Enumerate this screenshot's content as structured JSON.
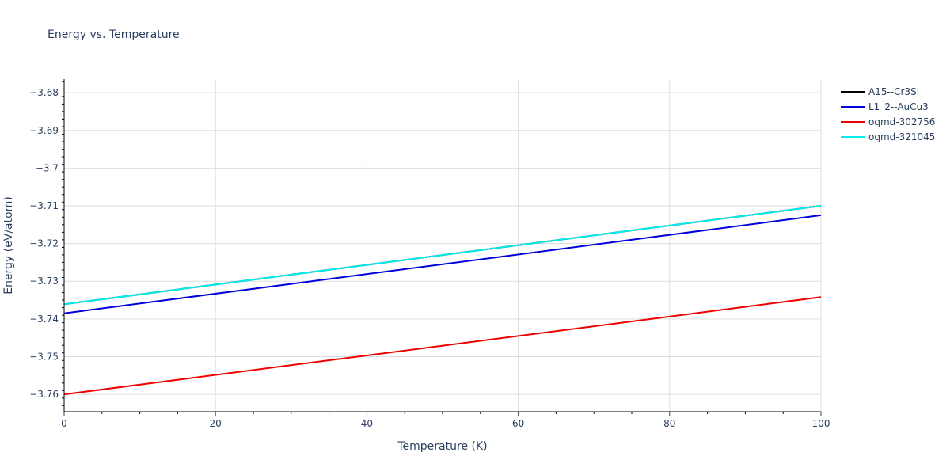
{
  "chart_data": {
    "type": "line",
    "title": "Energy vs. Temperature",
    "xlabel": "Temperature (K)",
    "ylabel": "Energy (eV/atom)",
    "xlim": [
      0,
      100
    ],
    "ylim": [
      -3.7646,
      -3.6764
    ],
    "x_ticks": [
      0,
      20,
      40,
      60,
      80,
      100
    ],
    "y_ticks": [
      -3.68,
      -3.69,
      -3.7,
      -3.71,
      -3.72,
      -3.73,
      -3.74,
      -3.75,
      -3.76
    ],
    "y_tick_labels": [
      "−3.68",
      "−3.69",
      "−3.7",
      "−3.71",
      "−3.72",
      "−3.73",
      "−3.74",
      "−3.75",
      "−3.76"
    ],
    "grid": true,
    "legend_position": "right",
    "x": [
      0,
      100
    ],
    "series": [
      {
        "name": "A15--Cr3Si",
        "color": "#000000",
        "values": [
          -3.7361,
          -3.71
        ]
      },
      {
        "name": "L1_2--AuCu3",
        "color": "#0000dd",
        "values": [
          -3.7385,
          -3.7125
        ]
      },
      {
        "name": "oqmd-302756",
        "color": "#ee0000",
        "values": [
          -3.76,
          -3.7342
        ]
      },
      {
        "name": "oqmd-321045",
        "color": "#00eeee",
        "values": [
          -3.7361,
          -3.71
        ]
      }
    ]
  }
}
